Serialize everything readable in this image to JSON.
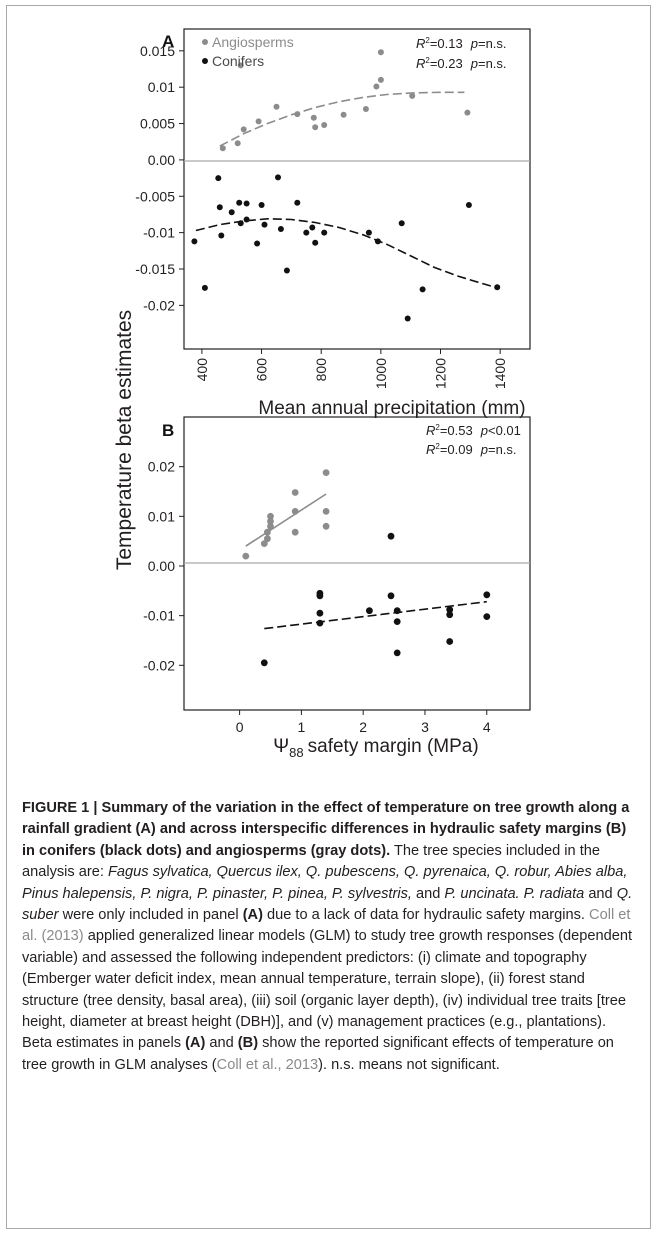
{
  "y_axis_label": "Temperature beta estimates",
  "chart_data": [
    {
      "panel": "A",
      "type": "scatter",
      "xlabel": "Mean annual precipitation (mm)",
      "xlim": [
        340,
        1500
      ],
      "ylim": [
        -0.026,
        0.018
      ],
      "xticks": [
        "400",
        "600",
        "800",
        "1000",
        "1200",
        "1400"
      ],
      "yticks": [
        "0.015",
        "0.01",
        "0.005",
        "0.00",
        "-0.005",
        "-0.01",
        "-0.015",
        "-0.02"
      ],
      "zero_line": true,
      "legend_position": "top-left",
      "legend": [
        {
          "label": "Angiosperms",
          "color": "#8c8c8c"
        },
        {
          "label": "Conifers",
          "color": "#111111"
        }
      ],
      "annotations": [
        {
          "r2": "=0.13",
          "p": "=n.s."
        },
        {
          "r2": "=0.23",
          "p": "=n.s."
        }
      ],
      "series": [
        {
          "name": "Angiosperms",
          "color": "#8c8c8c",
          "points": [
            [
              470,
              0.0016
            ],
            [
              520,
              0.0023
            ],
            [
              540,
              0.0042
            ],
            [
              530,
              0.013
            ],
            [
              590,
              0.0053
            ],
            [
              650,
              0.0073
            ],
            [
              720,
              0.0063
            ],
            [
              775,
              0.0058
            ],
            [
              780,
              0.0045
            ],
            [
              810,
              0.0048
            ],
            [
              875,
              0.0062
            ],
            [
              950,
              0.007
            ],
            [
              985,
              0.0101
            ],
            [
              1000,
              0.011
            ],
            [
              1000,
              0.0148
            ],
            [
              1105,
              0.0088
            ],
            [
              1290,
              0.0065
            ]
          ],
          "trend": {
            "style": "dashed",
            "points": [
              [
                460,
                0.0019
              ],
              [
                540,
                0.0036
              ],
              [
                620,
                0.005
              ],
              [
                700,
                0.0062
              ],
              [
                780,
                0.0072
              ],
              [
                860,
                0.008
              ],
              [
                940,
                0.0086
              ],
              [
                1020,
                0.009
              ],
              [
                1100,
                0.0092
              ],
              [
                1200,
                0.0093
              ],
              [
                1280,
                0.0093
              ]
            ]
          }
        },
        {
          "name": "Conifers",
          "color": "#111111",
          "points": [
            [
              375,
              -0.0112
            ],
            [
              410,
              -0.0176
            ],
            [
              455,
              -0.0025
            ],
            [
              460,
              -0.0065
            ],
            [
              465,
              -0.0104
            ],
            [
              500,
              -0.0072
            ],
            [
              525,
              -0.0059
            ],
            [
              530,
              -0.0087
            ],
            [
              550,
              -0.006
            ],
            [
              550,
              -0.0082
            ],
            [
              585,
              -0.0115
            ],
            [
              600,
              -0.0062
            ],
            [
              610,
              -0.0089
            ],
            [
              655,
              -0.0024
            ],
            [
              665,
              -0.0095
            ],
            [
              685,
              -0.0152
            ],
            [
              720,
              -0.0059
            ],
            [
              750,
              -0.01
            ],
            [
              770,
              -0.0093
            ],
            [
              780,
              -0.0114
            ],
            [
              810,
              -0.01
            ],
            [
              960,
              -0.01
            ],
            [
              990,
              -0.0112
            ],
            [
              1070,
              -0.0087
            ],
            [
              1090,
              -0.0218
            ],
            [
              1140,
              -0.0178
            ],
            [
              1295,
              -0.0062
            ],
            [
              1390,
              -0.0175
            ]
          ],
          "trend": {
            "style": "dashed",
            "points": [
              [
                380,
                -0.0097
              ],
              [
                460,
                -0.0089
              ],
              [
                540,
                -0.0084
              ],
              [
                620,
                -0.0081
              ],
              [
                700,
                -0.0082
              ],
              [
                780,
                -0.0086
              ],
              [
                860,
                -0.0093
              ],
              [
                940,
                -0.0103
              ],
              [
                1020,
                -0.0116
              ],
              [
                1100,
                -0.0132
              ],
              [
                1180,
                -0.0148
              ],
              [
                1260,
                -0.016
              ],
              [
                1340,
                -0.017
              ],
              [
                1390,
                -0.0176
              ]
            ]
          }
        }
      ]
    },
    {
      "panel": "B",
      "type": "scatter",
      "xlabel_symbol": "Ψ",
      "xlabel_subscript": "88",
      "xlabel_rest": "safety margin (MPa)",
      "xlim": [
        -0.9,
        4.7
      ],
      "ylim": [
        -0.029,
        0.03
      ],
      "xticks": [
        "0",
        "1",
        "2",
        "3",
        "4"
      ],
      "yticks": [
        "0.02",
        "0.01",
        "0.00",
        "-0.01",
        "-0.02"
      ],
      "zero_line": true,
      "annotations": [
        {
          "r2": "=0.53",
          "p": "<0.01"
        },
        {
          "r2": "=0.09",
          "p": "=n.s."
        }
      ],
      "series": [
        {
          "name": "Angiosperms",
          "color": "#8c8c8c",
          "points": [
            [
              0.1,
              0.002
            ],
            [
              0.4,
              0.0045
            ],
            [
              0.45,
              0.0055
            ],
            [
              0.45,
              0.0068
            ],
            [
              0.5,
              0.008
            ],
            [
              0.5,
              0.009
            ],
            [
              0.5,
              0.01
            ],
            [
              0.9,
              0.0068
            ],
            [
              0.9,
              0.011
            ],
            [
              0.9,
              0.0148
            ],
            [
              1.4,
              0.008
            ],
            [
              1.4,
              0.011
            ],
            [
              1.4,
              0.0188
            ]
          ],
          "trend": {
            "style": "solid",
            "points": [
              [
                0.1,
                0.004
              ],
              [
                1.4,
                0.0145
              ]
            ]
          }
        },
        {
          "name": "Conifers",
          "color": "#111111",
          "points": [
            [
              0.4,
              -0.0195
            ],
            [
              1.3,
              -0.0055
            ],
            [
              1.3,
              -0.006
            ],
            [
              1.3,
              -0.0095
            ],
            [
              1.3,
              -0.0115
            ],
            [
              2.1,
              -0.009
            ],
            [
              2.45,
              0.006
            ],
            [
              2.45,
              -0.006
            ],
            [
              2.55,
              -0.009
            ],
            [
              2.55,
              -0.0112
            ],
            [
              2.55,
              -0.0175
            ],
            [
              3.4,
              -0.0088
            ],
            [
              3.4,
              -0.0098
            ],
            [
              3.4,
              -0.0152
            ],
            [
              4.0,
              -0.0058
            ],
            [
              4.0,
              -0.0102
            ]
          ],
          "trend": {
            "style": "dashed",
            "points": [
              [
                0.4,
                -0.0126
              ],
              [
                4.0,
                -0.0072
              ]
            ]
          }
        }
      ]
    }
  ],
  "caption": {
    "lead": "FIGURE 1 | Summary of the variation in the effect of temperature on tree growth along a rainfall gradient (A) and across interspecific differences in hydraulic safety margins (B) in conifers (black dots) and angiosperms (gray dots).",
    "t1": " The tree species included in the analysis are: ",
    "species_italic": "Fagus sylvatica, Quercus ilex, Q. pubescens, Q. pyrenaica, Q. robur, Abies alba, Pinus halepensis, P. nigra, P. pinaster, P. pinea, P. sylvestris,",
    "t2": " and ",
    "species_italic2": "P. uncinata. P. radiata",
    "t3": " and ",
    "species_italic3": "Q. suber",
    "t4": " were only included in panel ",
    "panel_a": "(A)",
    "t5": " due to a lack of data for hydraulic safety margins. ",
    "ref1": "Coll et al. (2013)",
    "t6": " applied generalized linear models (GLM) to study tree growth responses (dependent variable) and assessed the following independent predictors: (i) climate and topography (Emberger water deficit index, mean annual temperature, terrain slope), (ii) forest stand structure (tree density, basal area), (iii) soil (organic layer depth), (iv) individual tree traits [tree height, diameter at breast height (DBH)], and (v) management practices (e.g., plantations). Beta estimates in panels ",
    "panel_a2": "(A)",
    "t7": " and ",
    "panel_b": "(B)",
    "t8": " show the reported significant effects of temperature on tree growth in GLM analyses (",
    "ref2": "Coll et al., 2013",
    "t9": "). n.s. means not significant."
  }
}
